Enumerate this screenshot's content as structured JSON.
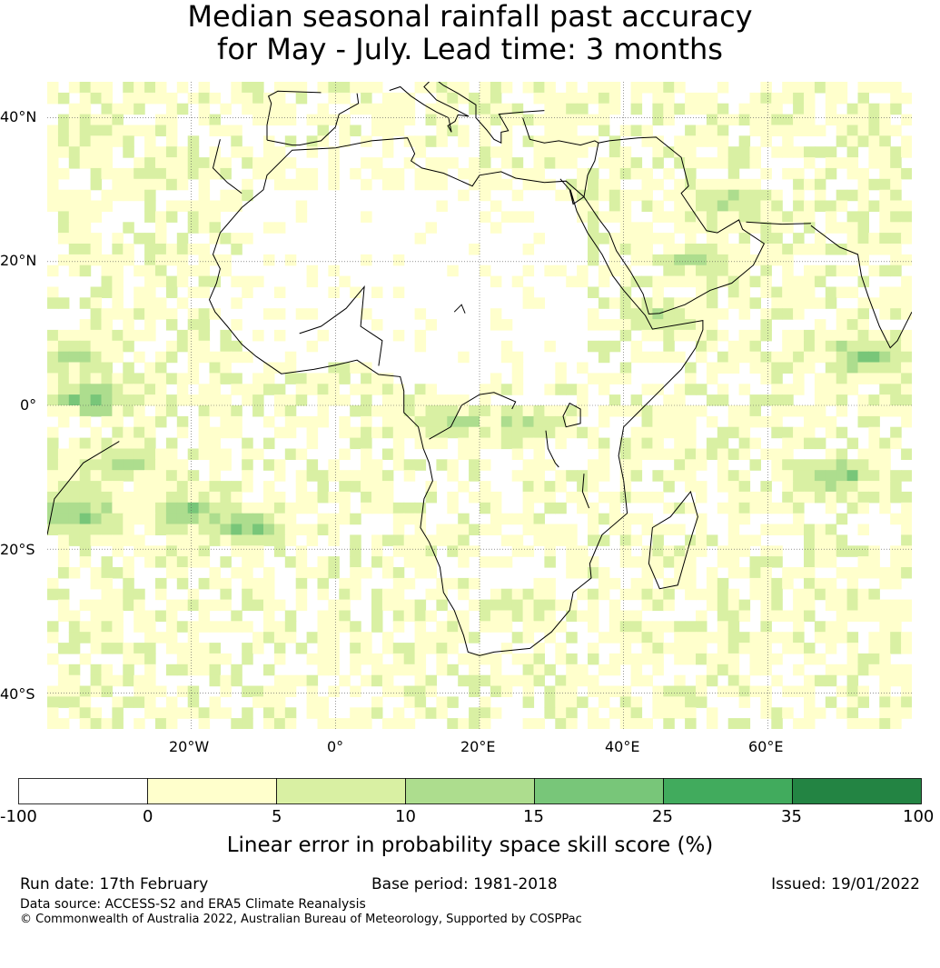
{
  "title": {
    "line1": "Median seasonal rainfall past accuracy",
    "line2": "for May - July. Lead time: 3 months"
  },
  "map": {
    "lon_range": [
      -40,
      80
    ],
    "lat_range": [
      -45,
      45
    ],
    "lat_labels": [
      "40°N",
      "20°N",
      "0°",
      "20°S",
      "40°S"
    ],
    "lat_values": [
      40,
      20,
      0,
      -20,
      -40
    ],
    "lon_labels": [
      "20°W",
      "0°",
      "20°E",
      "40°E",
      "60°E"
    ],
    "lon_values": [
      -20,
      0,
      20,
      40,
      60
    ],
    "gridlines": true,
    "cell_size_deg": 1.5,
    "skill_regions": [
      {
        "lon": -36,
        "lat": -15,
        "level": 4
      },
      {
        "lon": -20,
        "lat": -15,
        "level": 4
      },
      {
        "lon": -12,
        "lat": -17,
        "level": 4
      },
      {
        "lon": -30,
        "lat": -8,
        "level": 3
      },
      {
        "lon": -36,
        "lat": 7,
        "level": 3
      },
      {
        "lon": -34,
        "lat": 1,
        "level": 4
      },
      {
        "lon": 70,
        "lat": -10,
        "level": 4
      },
      {
        "lon": 74,
        "lat": 7,
        "level": 4
      },
      {
        "lon": 50,
        "lat": 20,
        "level": 3
      },
      {
        "lon": 55,
        "lat": 28,
        "level": 3
      },
      {
        "lon": 45,
        "lat": 12,
        "level": 3
      },
      {
        "lon": 16,
        "lat": -2,
        "level": 3
      },
      {
        "lon": 26,
        "lat": -3,
        "level": 3
      },
      {
        "lon": 25,
        "lat": -28,
        "level": 2
      },
      {
        "lon": -35,
        "lat": 38,
        "level": 2
      }
    ]
  },
  "colorbar": {
    "ticks": [
      "-100",
      "0",
      "5",
      "10",
      "15",
      "25",
      "35",
      "100"
    ],
    "colors": [
      "#ffffff",
      "#ffffcc",
      "#d9f0a3",
      "#addd8e",
      "#78c679",
      "#41ab5d",
      "#238443"
    ],
    "label": "Linear error in probability space skill score (%)"
  },
  "footer": {
    "run_date": "Run date: 17th February",
    "base_period": "Base period: 1981-2018",
    "issued": "Issued: 19/01/2022",
    "data_source": "Data source: ACCESS-S2 and ERA5 Climate Reanalysis",
    "copyright": "© Commonwealth of Australia 2022, Australian Bureau of Meteorology, Supported by COSPPac"
  }
}
